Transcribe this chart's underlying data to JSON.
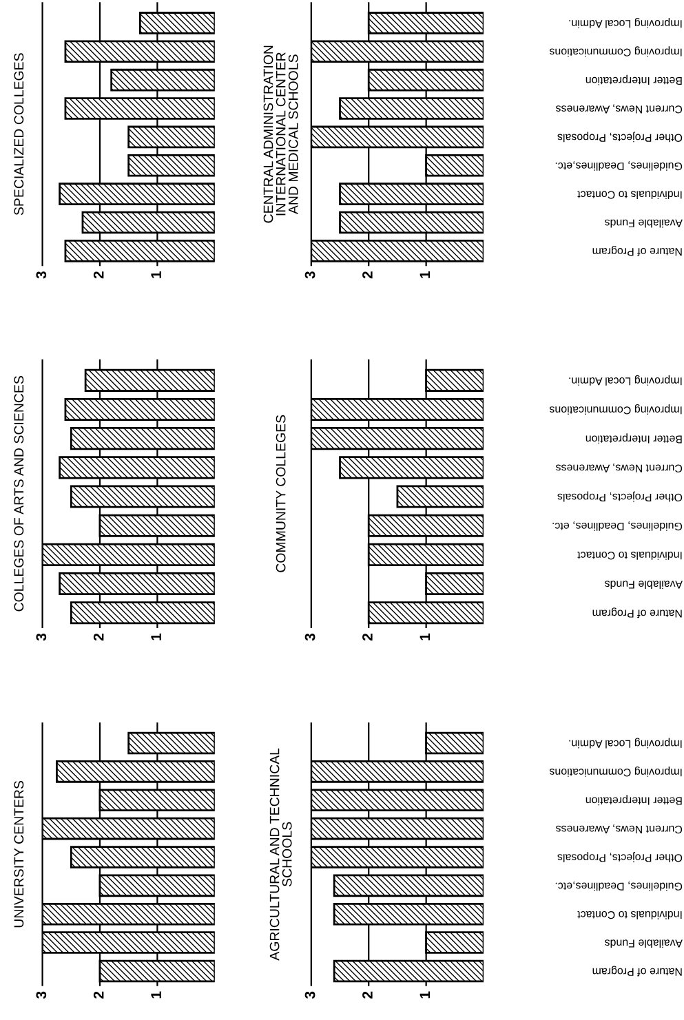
{
  "chart_data": [
    {
      "type": "bar",
      "orientation": "horizontal",
      "title": "SPECIALIZED COLLEGES",
      "categories": [
        null,
        null,
        null,
        null,
        null,
        null,
        null,
        null,
        null
      ],
      "values": [
        1.3,
        2.6,
        1.8,
        2.6,
        1.5,
        1.5,
        2.7,
        2.3,
        2.6
      ],
      "color": "#000000",
      "xlim": [
        3,
        0
      ],
      "xticks": [
        3,
        2,
        1
      ],
      "grid": "x"
    },
    {
      "type": "bar",
      "orientation": "horizontal",
      "title": "CENTRAL ADMINISTRATION\nINTERNATIONAL CENTER\nAND MEDICAL SCHOOLS",
      "categories": [
        "Improving Local Admin.",
        "Improving Communications",
        "Better Interpretation",
        "Current News, Awareness",
        "Other Projects, Proposals",
        "Guidelines, Deadlines,etc.",
        "Individuals to Contact",
        "Available Funds",
        "Nature of Program"
      ],
      "values": [
        2,
        3,
        2,
        2.5,
        3,
        1,
        2.5,
        2.5,
        3
      ],
      "color": "#000000",
      "xlim": [
        3,
        0
      ],
      "xticks": [
        3,
        2,
        1
      ],
      "grid": "x"
    },
    {
      "type": "bar",
      "orientation": "horizontal",
      "title": "COLLEGES OF ARTS AND SCIENCES",
      "categories": [
        null,
        null,
        null,
        null,
        null,
        null,
        null,
        null,
        null
      ],
      "values": [
        2.25,
        2.6,
        2.5,
        2.7,
        2.5,
        2,
        3,
        2.7,
        2.5
      ],
      "color": "#000000",
      "xlim": [
        3,
        0
      ],
      "xticks": [
        3,
        2,
        1
      ],
      "grid": "x"
    },
    {
      "type": "bar",
      "orientation": "horizontal",
      "title": "COMMUNITY COLLEGES",
      "categories": [
        "Improving Local Admin.",
        "Improving Communications",
        "Better Interpretation",
        "Current News, Awareness",
        "Other Projects, Proposals",
        "Guidelines, Deadlines, etc.",
        "Individuals to Contact",
        "Available Funds",
        "Nature of Program"
      ],
      "values": [
        1,
        3,
        3,
        2.5,
        1.5,
        2,
        2,
        1,
        2
      ],
      "color": "#000000",
      "xlim": [
        3,
        0
      ],
      "xticks": [
        3,
        2,
        1
      ],
      "grid": "x"
    },
    {
      "type": "bar",
      "orientation": "horizontal",
      "title": "UNIVERSITY CENTERS",
      "categories": [
        null,
        null,
        null,
        null,
        null,
        null,
        null,
        null,
        null
      ],
      "values": [
        1.5,
        2.75,
        2,
        3,
        2.5,
        2,
        3,
        3,
        2
      ],
      "color": "#000000",
      "xlim": [
        3,
        0
      ],
      "xticks": [
        3,
        2,
        1
      ],
      "grid": "x"
    },
    {
      "type": "bar",
      "orientation": "horizontal",
      "title": "AGRICULTURAL AND TECHNICAL\nSCHOOLS",
      "categories": [
        "Improving Local Admin.",
        "Improving Communications",
        "Better Interpretation",
        "Current News, Awareness",
        "Other Projects, Proposals",
        "Guidelines, Deadlines,etc.",
        "Individuals to Contact",
        "Available Funds",
        "Nature of Program"
      ],
      "values": [
        1,
        3,
        3,
        3,
        3,
        2.6,
        2.6,
        1,
        2.6
      ],
      "color": "#000000",
      "xlim": [
        3,
        0
      ],
      "xticks": [
        3,
        2,
        1
      ],
      "grid": "x"
    }
  ]
}
